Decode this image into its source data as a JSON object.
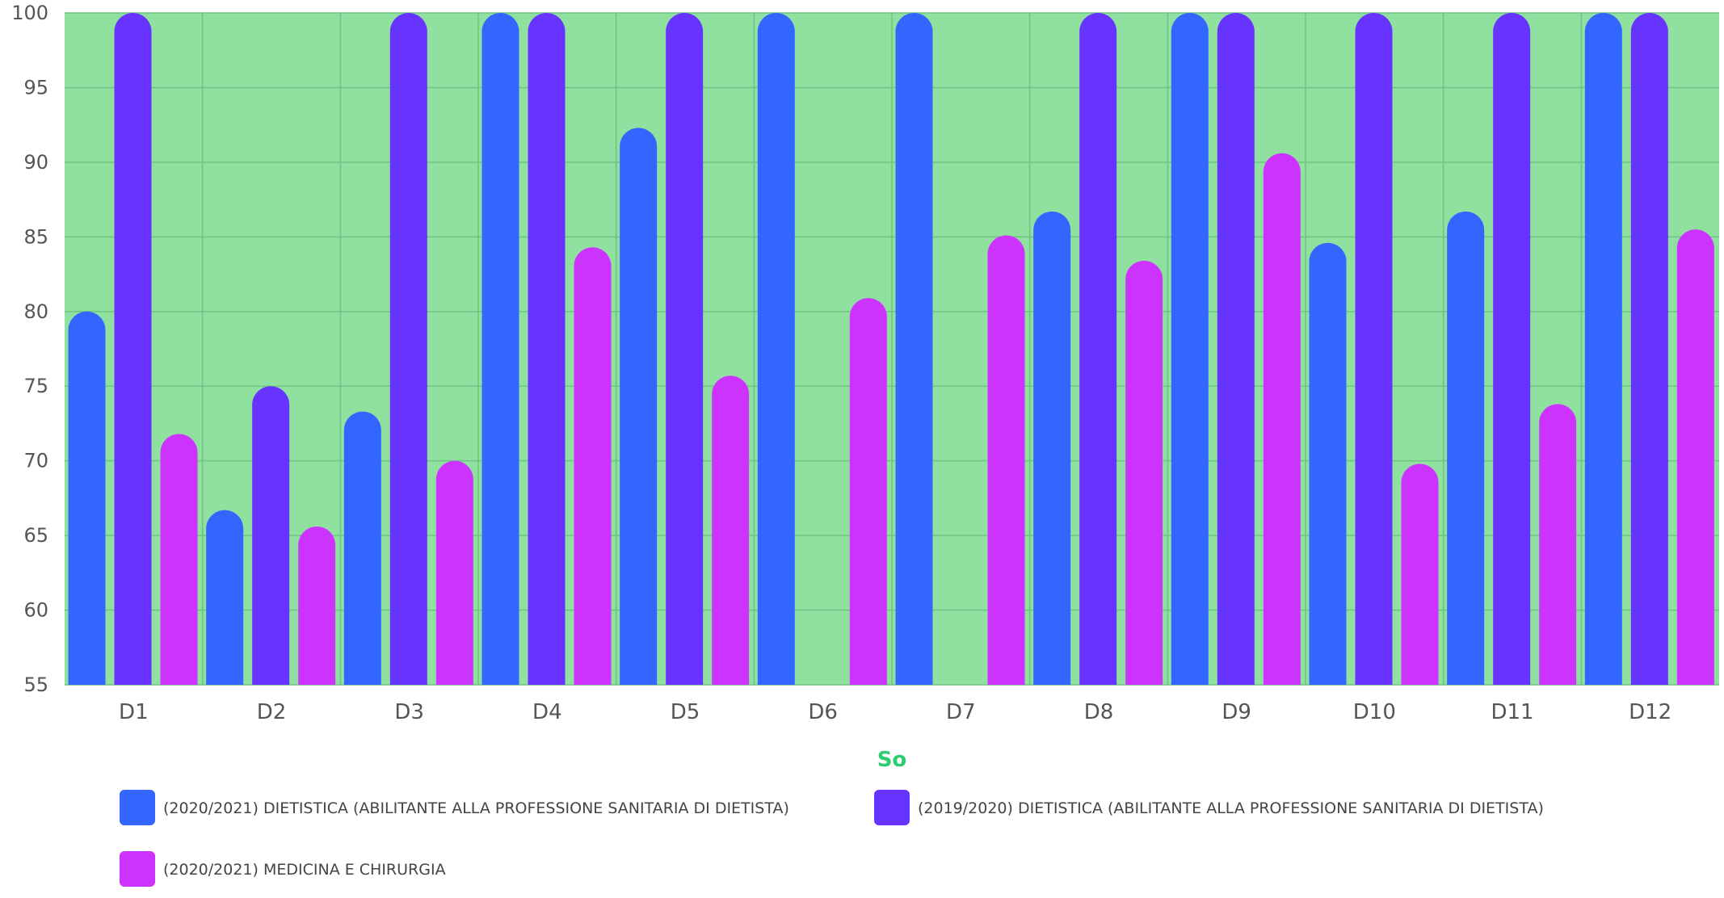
{
  "chart_data": {
    "type": "bar",
    "categories": [
      "D1",
      "D2",
      "D3",
      "D4",
      "D5",
      "D6",
      "D7",
      "D8",
      "D9",
      "D10",
      "D11",
      "D12"
    ],
    "series": [
      {
        "name": "(2020/2021) DIETISTICA (ABILITANTE ALLA PROFESSIONE SANITARIA DI DIETISTA)",
        "color": "#3366ff",
        "values": [
          80,
          66.7,
          73.3,
          100,
          92.3,
          100,
          100,
          86.7,
          100,
          84.6,
          86.7,
          100
        ]
      },
      {
        "name": "(2019/2020) DIETISTICA (ABILITANTE ALLA PROFESSIONE SANITARIA DI DIETISTA)",
        "color": "#6633ff",
        "values": [
          100,
          75,
          100,
          100,
          100,
          null,
          null,
          100,
          100,
          100,
          100,
          100
        ]
      },
      {
        "name": "(2020/2021) MEDICINA E CHIRURGIA",
        "color": "#cc33ff",
        "values": [
          71.8,
          65.6,
          70,
          84.3,
          75.7,
          80.9,
          85.1,
          83.4,
          90.6,
          69.8,
          73.8,
          85.5
        ]
      }
    ],
    "xlabel": "So",
    "ylabel": "",
    "ylim": [
      55,
      100
    ],
    "yticks": [
      55,
      60,
      65,
      70,
      75,
      80,
      85,
      90,
      95,
      100
    ],
    "grid": true,
    "legend_position": "bottom",
    "colors": {
      "plot_background": "#90e0a0",
      "grid": "#6fc483",
      "axis_title": "#2ecc71"
    }
  }
}
